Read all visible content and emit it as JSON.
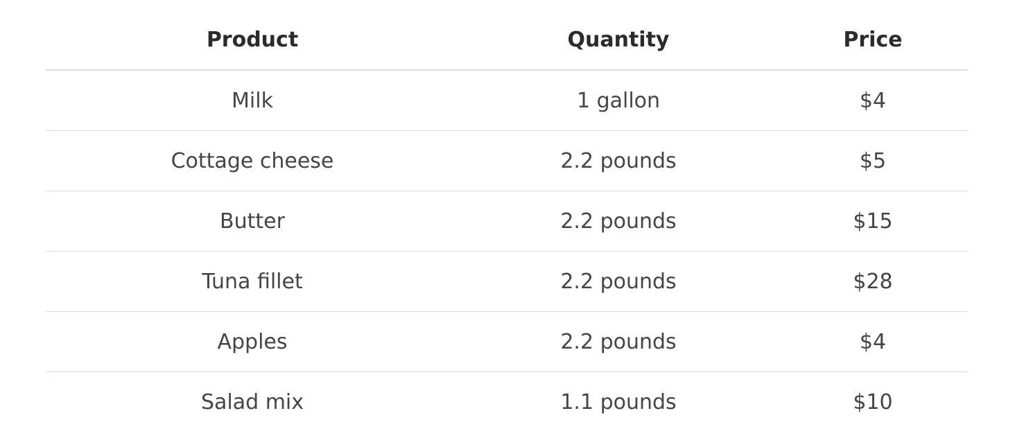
{
  "table": {
    "headers": [
      "Product",
      "Quantity",
      "Price"
    ],
    "rows": [
      [
        "Milk",
        "1 gallon",
        "$4"
      ],
      [
        "Cottage cheese",
        "2.2 pounds",
        "$5"
      ],
      [
        "Butter",
        "2.2 pounds",
        "$15"
      ],
      [
        "Tuna fillet",
        "2.2 pounds",
        "$28"
      ],
      [
        "Apples",
        "2.2 pounds",
        "$4"
      ],
      [
        "Salad mix",
        "1.1 pounds",
        "$10"
      ]
    ]
  }
}
